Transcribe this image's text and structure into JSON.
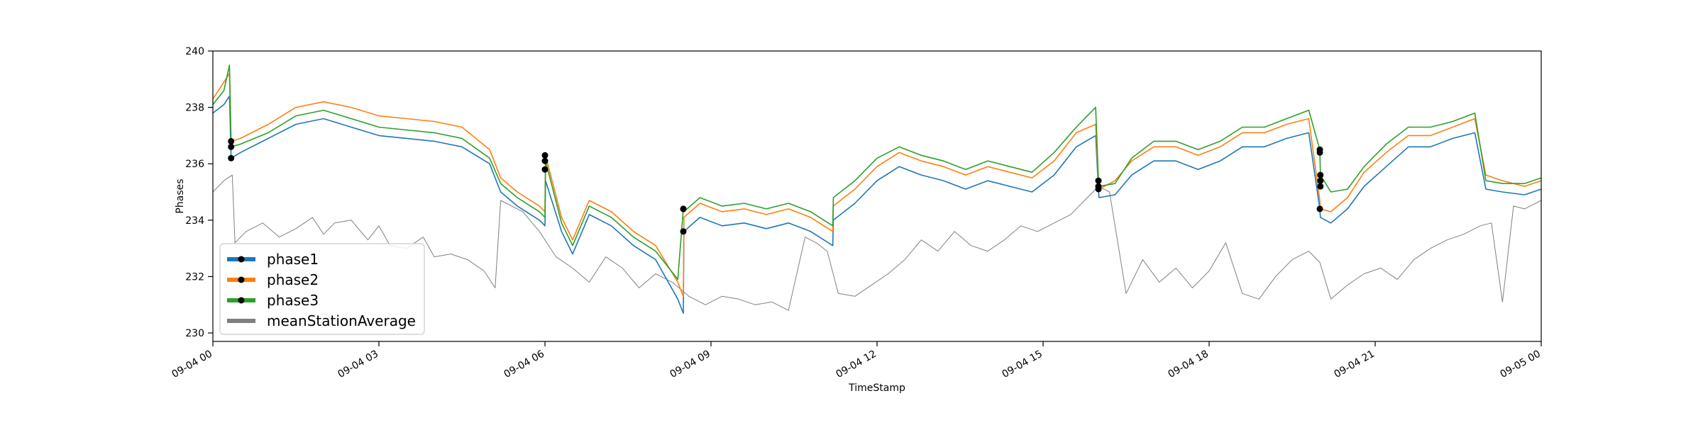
{
  "chart_data": {
    "type": "line",
    "title": "",
    "xlabel": "TimeStamp",
    "ylabel": "Phases",
    "xlim": [
      "09-04 00",
      "09-05 00"
    ],
    "ylim": [
      229.7,
      240
    ],
    "x_ticks": [
      "09-04 00",
      "09-04 03",
      "09-04 06",
      "09-04 09",
      "09-04 12",
      "09-04 15",
      "09-04 18",
      "09-04 21",
      "09-05 00"
    ],
    "y_ticks": [
      230,
      232,
      234,
      236,
      238,
      240
    ],
    "grid": false,
    "legend_position": "lower-left",
    "x_unit": "hours since 09-04 00:00",
    "series": [
      {
        "name": "phase1",
        "color": "#1f77b4",
        "marker_color": "#000000",
        "x": [
          0,
          0.2,
          0.3,
          0.33,
          0.5,
          1,
          1.5,
          2,
          2.5,
          3,
          3.5,
          4,
          4.5,
          5,
          5.2,
          5.5,
          5.9,
          6.0,
          6.01,
          6.3,
          6.5,
          6.8,
          7.2,
          7.6,
          8.0,
          8.4,
          8.5,
          8.51,
          8.8,
          9.2,
          9.6,
          10,
          10.4,
          10.8,
          11.2,
          11.21,
          11.6,
          12,
          12.4,
          12.8,
          13.2,
          13.6,
          14,
          14.4,
          14.8,
          15.2,
          15.6,
          15.95,
          16.0,
          16.01,
          16.3,
          16.6,
          17,
          17.4,
          17.8,
          18.2,
          18.6,
          19,
          19.4,
          19.8,
          20.0,
          20.01,
          20.2,
          20.5,
          20.8,
          21.2,
          21.6,
          22,
          22.4,
          22.8,
          23.0,
          23.3,
          23.7,
          24
        ],
        "y": [
          237.8,
          238.1,
          238.4,
          236.2,
          236.4,
          236.9,
          237.4,
          237.6,
          237.3,
          237.0,
          236.9,
          236.8,
          236.6,
          236.0,
          235.0,
          234.5,
          234.0,
          233.8,
          235.4,
          233.6,
          232.8,
          234.2,
          233.8,
          233.1,
          232.6,
          231.2,
          230.7,
          233.6,
          234.1,
          233.8,
          233.9,
          233.7,
          233.9,
          233.6,
          233.1,
          234.0,
          234.6,
          235.4,
          235.9,
          235.6,
          235.4,
          235.1,
          235.4,
          235.2,
          235.0,
          235.6,
          236.6,
          237.0,
          235.1,
          234.8,
          234.9,
          235.6,
          236.1,
          236.1,
          235.8,
          236.1,
          236.6,
          236.6,
          236.9,
          237.1,
          234.4,
          234.1,
          233.9,
          234.4,
          235.2,
          235.9,
          236.6,
          236.6,
          236.9,
          237.1,
          235.1,
          235.0,
          234.9,
          235.1
        ]
      },
      {
        "name": "phase2",
        "color": "#ff7f0e",
        "marker_color": "#000000",
        "x": [
          0,
          0.2,
          0.3,
          0.33,
          0.5,
          1,
          1.5,
          2,
          2.5,
          3,
          3.5,
          4,
          4.5,
          5,
          5.2,
          5.5,
          5.9,
          6.0,
          6.01,
          6.3,
          6.5,
          6.8,
          7.2,
          7.6,
          8.0,
          8.4,
          8.5,
          8.51,
          8.8,
          9.2,
          9.6,
          10,
          10.4,
          10.8,
          11.2,
          11.21,
          11.6,
          12,
          12.4,
          12.8,
          13.2,
          13.6,
          14,
          14.4,
          14.8,
          15.2,
          15.6,
          15.95,
          16.0,
          16.01,
          16.3,
          16.6,
          17,
          17.4,
          17.8,
          18.2,
          18.6,
          19,
          19.4,
          19.8,
          20.0,
          20.01,
          20.2,
          20.5,
          20.8,
          21.2,
          21.6,
          22,
          22.4,
          22.8,
          23.0,
          23.3,
          23.7,
          24
        ],
        "y": [
          238.3,
          238.9,
          239.2,
          236.8,
          236.9,
          237.4,
          238.0,
          238.2,
          238.0,
          237.7,
          237.6,
          237.5,
          237.3,
          236.5,
          235.5,
          235.0,
          234.5,
          234.3,
          236.3,
          234.1,
          233.3,
          234.7,
          234.3,
          233.6,
          233.1,
          231.8,
          231.3,
          234.1,
          234.6,
          234.3,
          234.4,
          234.2,
          234.4,
          234.1,
          233.6,
          234.5,
          235.1,
          235.9,
          236.4,
          236.1,
          235.9,
          235.6,
          235.9,
          235.7,
          235.5,
          236.1,
          237.1,
          237.4,
          235.3,
          235.1,
          235.4,
          236.1,
          236.6,
          236.6,
          236.3,
          236.6,
          237.1,
          237.1,
          237.4,
          237.6,
          234.7,
          234.4,
          234.3,
          234.8,
          235.7,
          236.4,
          237.0,
          237.0,
          237.3,
          237.6,
          235.6,
          235.4,
          235.2,
          235.4
        ]
      },
      {
        "name": "phase3",
        "color": "#2ca02c",
        "marker_color": "#000000",
        "x": [
          0,
          0.2,
          0.3,
          0.33,
          0.5,
          1,
          1.5,
          2,
          2.5,
          3,
          3.5,
          4,
          4.5,
          5,
          5.2,
          5.5,
          5.9,
          6.0,
          6.01,
          6.3,
          6.5,
          6.8,
          7.2,
          7.6,
          8.0,
          8.4,
          8.5,
          8.51,
          8.8,
          9.2,
          9.6,
          10,
          10.4,
          10.8,
          11.2,
          11.21,
          11.6,
          12,
          12.4,
          12.8,
          13.2,
          13.6,
          14,
          14.4,
          14.8,
          15.2,
          15.6,
          15.95,
          16.0,
          16.01,
          16.3,
          16.6,
          17,
          17.4,
          17.8,
          18.2,
          18.6,
          19,
          19.4,
          19.8,
          20.0,
          20.01,
          20.2,
          20.5,
          20.8,
          21.2,
          21.6,
          22,
          22.4,
          22.8,
          23.0,
          23.3,
          23.7,
          24
        ],
        "y": [
          238.1,
          238.6,
          239.5,
          236.6,
          236.7,
          237.1,
          237.7,
          237.9,
          237.6,
          237.3,
          237.2,
          237.1,
          236.9,
          236.2,
          235.3,
          234.8,
          234.3,
          234.1,
          236.1,
          233.9,
          233.1,
          234.5,
          234.1,
          233.4,
          232.9,
          231.9,
          234.4,
          234.3,
          234.8,
          234.5,
          234.6,
          234.4,
          234.6,
          234.3,
          233.8,
          234.8,
          235.4,
          236.2,
          236.6,
          236.3,
          236.1,
          235.8,
          236.1,
          235.9,
          235.7,
          236.4,
          237.3,
          238.0,
          235.4,
          235.2,
          235.3,
          236.2,
          236.8,
          236.8,
          236.5,
          236.8,
          237.3,
          237.3,
          237.6,
          237.9,
          236.5,
          235.6,
          235.0,
          235.1,
          235.9,
          236.7,
          237.3,
          237.3,
          237.5,
          237.8,
          235.4,
          235.3,
          235.3,
          235.5
        ]
      },
      {
        "name": "meanStationAverage",
        "color": "#808080",
        "x": [
          0,
          0.2,
          0.35,
          0.4,
          0.6,
          0.9,
          1.2,
          1.5,
          1.8,
          2.0,
          2.2,
          2.5,
          2.8,
          3.0,
          3.2,
          3.5,
          3.8,
          4.0,
          4.3,
          4.6,
          4.9,
          5.1,
          5.2,
          5.3,
          5.6,
          5.9,
          6.2,
          6.5,
          6.8,
          7.1,
          7.4,
          7.7,
          8.0,
          8.3,
          8.6,
          8.9,
          9.2,
          9.5,
          9.8,
          10.1,
          10.4,
          10.7,
          10.9,
          11.1,
          11.3,
          11.6,
          11.9,
          12.2,
          12.5,
          12.8,
          13.1,
          13.4,
          13.7,
          14.0,
          14.3,
          14.6,
          14.9,
          15.2,
          15.5,
          15.8,
          16.0,
          16.2,
          16.5,
          16.8,
          17.1,
          17.4,
          17.7,
          18.0,
          18.3,
          18.6,
          18.9,
          19.2,
          19.5,
          19.8,
          20.0,
          20.2,
          20.5,
          20.8,
          21.1,
          21.4,
          21.7,
          22.0,
          22.3,
          22.6,
          22.9,
          23.1,
          23.3,
          23.5,
          23.7,
          24
        ],
        "y": [
          235.0,
          235.4,
          235.6,
          233.2,
          233.6,
          233.9,
          233.4,
          233.7,
          234.1,
          233.5,
          233.9,
          234.0,
          233.3,
          233.8,
          233.1,
          233.0,
          233.4,
          232.7,
          232.8,
          232.6,
          232.2,
          231.6,
          234.7,
          234.6,
          234.3,
          233.6,
          232.7,
          232.3,
          231.8,
          232.7,
          232.3,
          231.6,
          232.1,
          231.8,
          231.3,
          231.0,
          231.3,
          231.2,
          231.0,
          231.1,
          230.8,
          233.4,
          233.2,
          232.9,
          231.4,
          231.3,
          231.7,
          232.1,
          232.6,
          233.3,
          232.9,
          233.6,
          233.1,
          232.9,
          233.3,
          233.8,
          233.6,
          233.9,
          234.2,
          234.8,
          235.2,
          235.0,
          231.4,
          232.6,
          231.8,
          232.3,
          231.6,
          232.2,
          233.2,
          231.4,
          231.2,
          232.0,
          232.6,
          232.9,
          232.5,
          231.2,
          231.7,
          232.1,
          232.3,
          231.9,
          232.6,
          233.0,
          233.3,
          233.5,
          233.8,
          233.9,
          231.1,
          234.5,
          234.4,
          234.7
        ]
      }
    ],
    "markers": {
      "phase1": [
        [
          0.33,
          236.2
        ],
        [
          6.0,
          235.8
        ],
        [
          8.5,
          233.6
        ],
        [
          16.0,
          235.1
        ],
        [
          20.0,
          234.4
        ],
        [
          20.01,
          235.6
        ]
      ],
      "phase2": [
        [
          0.33,
          236.8
        ],
        [
          6.0,
          236.3
        ],
        [
          8.5,
          234.4
        ],
        [
          16.0,
          235.4
        ],
        [
          20.0,
          236.4
        ],
        [
          20.01,
          235.2
        ]
      ],
      "phase3": [
        [
          0.33,
          236.6
        ],
        [
          6.0,
          236.1
        ],
        [
          8.5,
          234.4
        ],
        [
          16.0,
          235.2
        ],
        [
          20.0,
          236.5
        ],
        [
          20.01,
          235.4
        ]
      ]
    }
  }
}
